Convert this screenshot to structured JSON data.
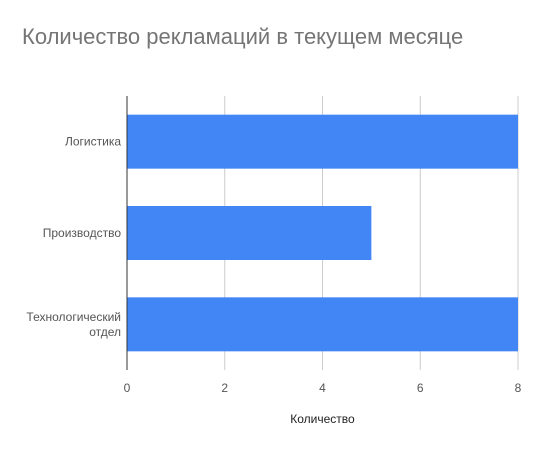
{
  "chart_data": {
    "type": "bar",
    "orientation": "horizontal",
    "title": "Количество рекламаций в текущем месяце",
    "xlabel": "Количество",
    "ylabel": "",
    "categories": [
      "Логистика",
      "Производство",
      "Технологический отдел"
    ],
    "category_lines": [
      [
        "Логистика"
      ],
      [
        "Производство"
      ],
      [
        "Технологический",
        "отдел"
      ]
    ],
    "values": [
      8,
      5,
      8
    ],
    "xlim": [
      0,
      8
    ],
    "xticks": [
      0,
      2,
      4,
      6,
      8
    ],
    "grid": true,
    "legend": "none",
    "colors": {
      "bar": "#4285f4",
      "grid": "#cccccc",
      "axis": "#333333",
      "tick_text": "#555555"
    }
  }
}
